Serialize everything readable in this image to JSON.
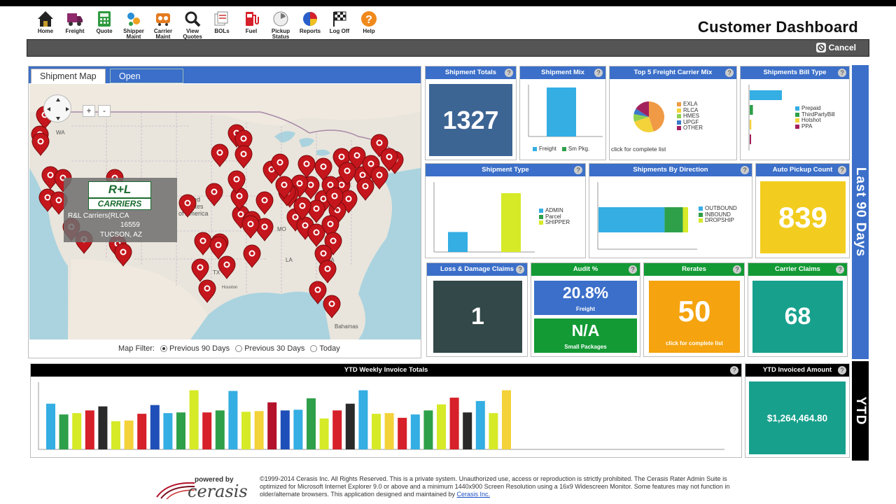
{
  "page_title": "Customer Dashboard",
  "toolbar": [
    {
      "name": "home",
      "label": "Home",
      "icon": "house-icon"
    },
    {
      "name": "freight",
      "label": "Freight",
      "icon": "truck-icon"
    },
    {
      "name": "quote",
      "label": "Quote",
      "icon": "calculator-icon"
    },
    {
      "name": "shipper-maint",
      "label": "Shipper Maint",
      "icon": "shipper-icon"
    },
    {
      "name": "carrier-maint",
      "label": "Carrier Maint",
      "icon": "carrier-icon"
    },
    {
      "name": "view-quotes",
      "label": "View Quotes",
      "icon": "magnifier-icon"
    },
    {
      "name": "bols",
      "label": "BOLs",
      "icon": "documents-icon"
    },
    {
      "name": "fuel",
      "label": "Fuel",
      "icon": "fuel-pump-icon"
    },
    {
      "name": "pickup-status",
      "label": "Pickup Status",
      "icon": "pickup-icon"
    },
    {
      "name": "reports",
      "label": "Reports",
      "icon": "pie-chart-icon"
    },
    {
      "name": "log-off",
      "label": "Log Off",
      "icon": "checkered-flag-icon"
    },
    {
      "name": "help",
      "label": "Help",
      "icon": "question-icon"
    }
  ],
  "cancel_label": "Cancel",
  "map": {
    "tabs": [
      "Shipment Map",
      "Open Invoices"
    ],
    "labels": {
      "wa": "WA",
      "united": "United",
      "states": "States",
      "ofamerica": "of America",
      "tx": "TX",
      "bahamas": "Bahamas",
      "houston": "Houston",
      "la": "LA",
      "mo": "MO",
      "ga": "GA"
    },
    "popup": {
      "logo_top": "R+L",
      "logo_bottom": "CARRIERS",
      "line1": "R&L Carriers(RLCA",
      "line2": "16559",
      "line3": "TUCSON, AZ"
    },
    "zoom_in": "+",
    "zoom_out": "-",
    "filter_label": "Map Filter:",
    "filter_options": [
      "Previous 90 Days",
      "Previous 30 Days",
      "Today"
    ],
    "filter_selected": "Previous 90 Days"
  },
  "tiles": {
    "shipment_totals": {
      "title": "Shipment Totals",
      "value": "1327"
    },
    "shipment_mix": {
      "title": "Shipment Mix",
      "legend": [
        "Freight",
        "Sm Pkg."
      ]
    },
    "top5": {
      "title": "Top 5 Freight Carrier Mix",
      "legend": [
        "EXLA",
        "RLCA",
        "HMES",
        "UPGF",
        "OTHER"
      ],
      "note": "click for complete list"
    },
    "bill_type": {
      "title": "Shipments Bill Type",
      "legend": [
        "Prepaid",
        "ThirdPartyBill",
        "Hotshot",
        "PPA"
      ]
    },
    "shipment_type": {
      "title": "Shipment Type",
      "legend": [
        "ADMIN",
        "Parcel",
        "SHIPPER"
      ]
    },
    "by_direction": {
      "title": "Shipments By Direction",
      "legend": [
        "OUTBOUND",
        "INBOUND",
        "DROPSHIP"
      ]
    },
    "auto_pickup": {
      "title": "Auto Pickup Count",
      "value": "839"
    },
    "loss_damage": {
      "title": "Loss & Damage Claims",
      "value": "1"
    },
    "audit": {
      "title": "Audit %",
      "value1": "20.8%",
      "sub1": "Freight",
      "value2": "N/A",
      "sub2": "Small Packages"
    },
    "rerates": {
      "title": "Rerates",
      "value": "50",
      "note": "click for complete list"
    },
    "carrier_claims": {
      "title": "Carrier Claims",
      "value": "68"
    },
    "ytd_weekly": {
      "title": "YTD Weekly Invoice Totals"
    },
    "ytd_invoiced": {
      "title": "YTD Invoiced Amount",
      "value": "$1,264,464.80"
    }
  },
  "side_labels": {
    "last90": "Last 90 Days",
    "ytd": "YTD"
  },
  "footer": {
    "powered_by": "powered by",
    "brand": "cerasis",
    "copyright": "©1999-2014 Cerasis Inc. All Rights Reserved. This is a private system. Unauthorized use, access or reproduction is strictly prohibited. The Cerasis Rater Admin Suite is optimized for Microsoft Internet Explorer 9.0 or above and a minimum 1440x900 Screen Resolution using a 16x9 Widescreen Monitor. Some features may not function in older/alternate browsers. This application designed and maintained by ",
    "link": "Cerasis Inc."
  },
  "colors": {
    "blue": "#3b6fc9",
    "green": "#139a35",
    "navy_tile": "#3d6594",
    "yellow_tile": "#f2cd1f",
    "dark_tile": "#334848",
    "orange_tile": "#f5a30e",
    "teal_tile": "#17a08c",
    "marker": "#c4161c"
  },
  "chart_data": [
    {
      "type": "bar",
      "title": "Shipment Mix",
      "categories": [
        "Freight",
        "Sm Pkg."
      ],
      "values": [
        1,
        0
      ]
    },
    {
      "type": "pie",
      "title": "Top 5 Freight Carrier Mix",
      "categories": [
        "EXLA",
        "RLCA",
        "HMES",
        "UPGF",
        "OTHER"
      ],
      "values": [
        45,
        25,
        8,
        6,
        16
      ]
    },
    {
      "type": "bar",
      "title": "Shipments Bill Type",
      "categories": [
        "Prepaid",
        "ThirdPartyBill",
        "Hotshot",
        "PPA"
      ],
      "values": [
        100,
        10,
        5,
        1
      ]
    },
    {
      "type": "bar",
      "title": "Shipment Type",
      "categories": [
        "ADMIN",
        "Parcel",
        "SHIPPER"
      ],
      "values": [
        34,
        0,
        100
      ]
    },
    {
      "type": "bar",
      "title": "Shipments By Direction",
      "categories": [
        "OUTBOUND",
        "INBOUND",
        "DROPSHIP"
      ],
      "values": [
        76,
        21,
        6
      ]
    },
    {
      "type": "bar",
      "title": "YTD Weekly Invoice Totals",
      "values": [
        68,
        52,
        54,
        58,
        64,
        42,
        43,
        53,
        66,
        54,
        55,
        88,
        55,
        58,
        87,
        56,
        57,
        70,
        58,
        59,
        76,
        46,
        58,
        68,
        88,
        53,
        54,
        47,
        52,
        58,
        67,
        77,
        55,
        72,
        54,
        88
      ]
    }
  ]
}
